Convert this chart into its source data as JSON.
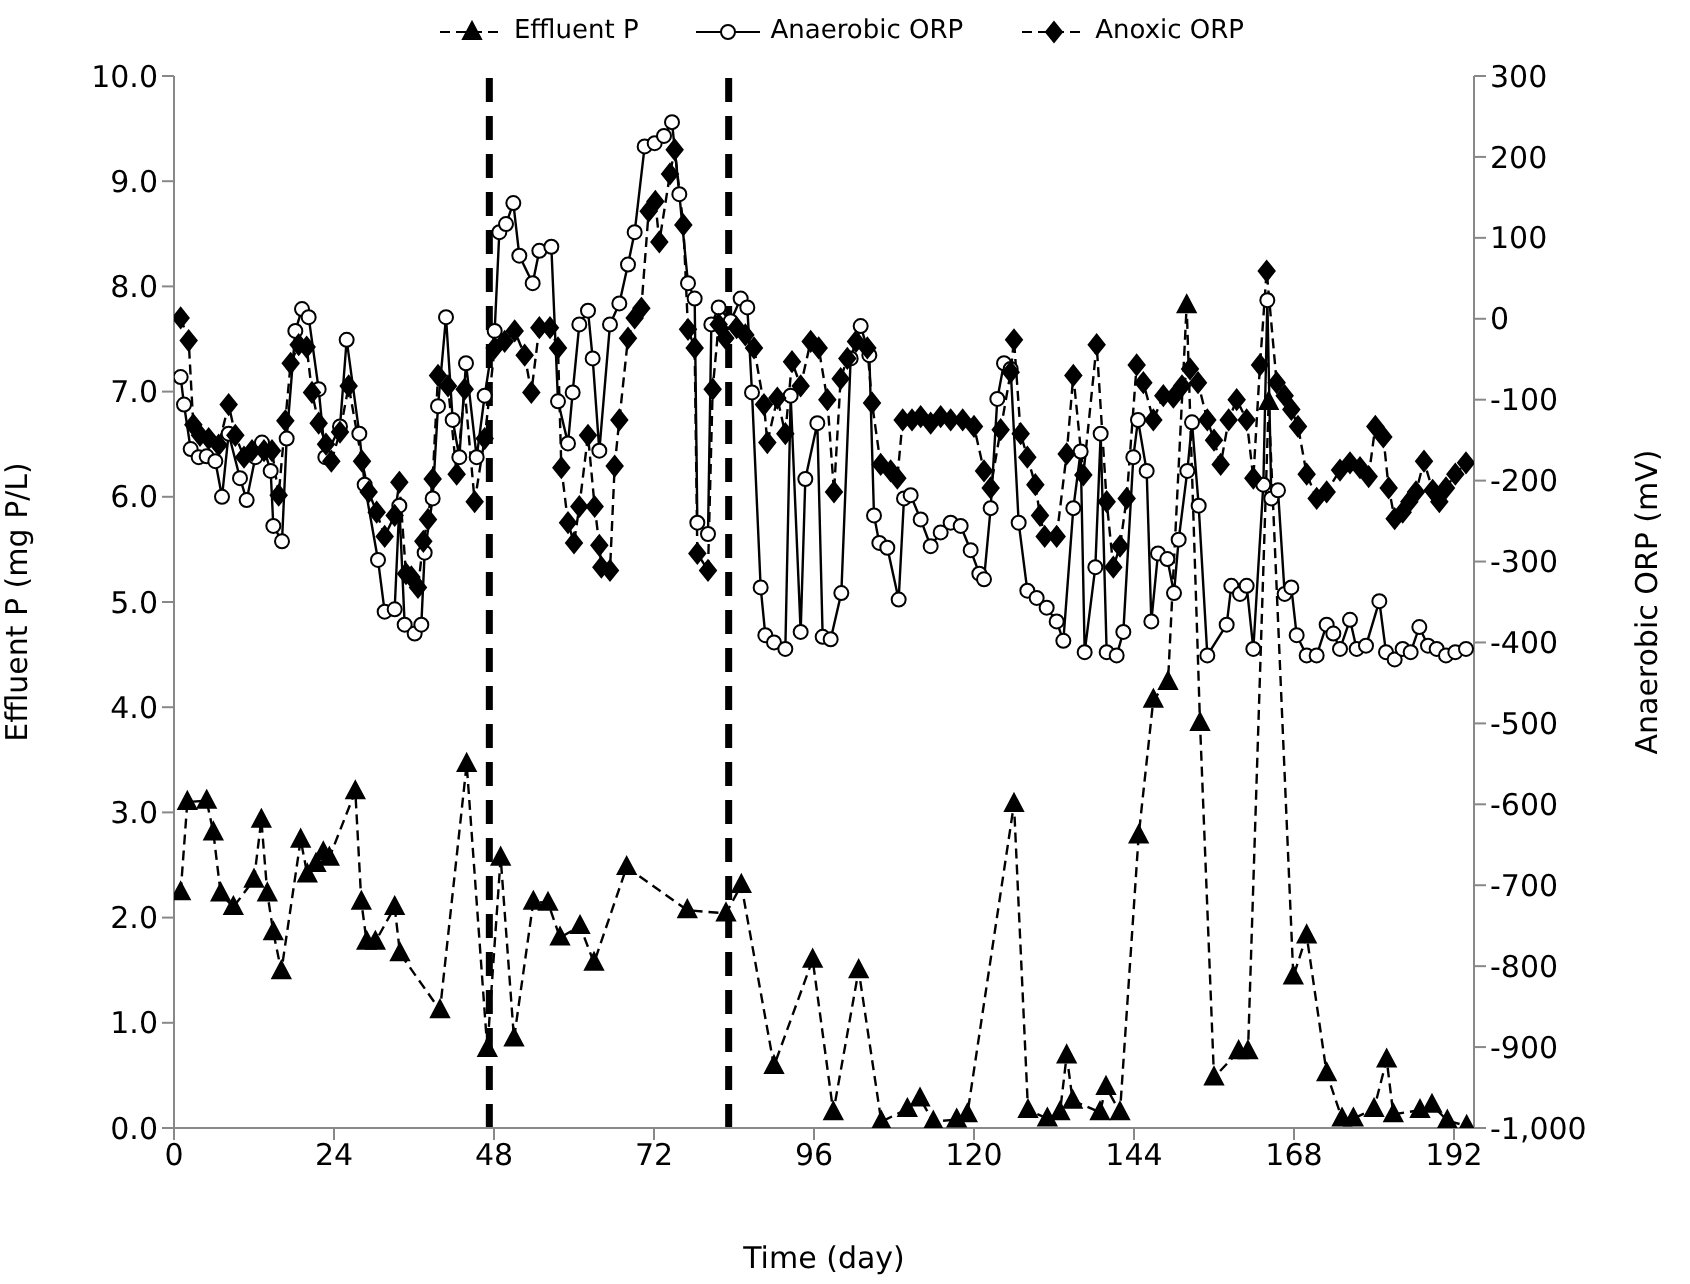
{
  "chart_data": {
    "type": "line",
    "xlabel": "Time (day)",
    "ylabel": "Effluent P (mg P/L)",
    "y2label": "Anaerobic ORP (mV)",
    "xlim": [
      0,
      195
    ],
    "xticks": [
      0,
      24,
      48,
      72,
      96,
      120,
      144,
      168,
      192
    ],
    "ylim": [
      0,
      10
    ],
    "yticks": [
      {
        "value": 0,
        "label": "0.0"
      },
      {
        "value": 1,
        "label": "1.0"
      },
      {
        "value": 2,
        "label": "2.0"
      },
      {
        "value": 3,
        "label": "3.0"
      },
      {
        "value": 4,
        "label": "4.0"
      },
      {
        "value": 5,
        "label": "5.0"
      },
      {
        "value": 6,
        "label": "6.0"
      },
      {
        "value": 7,
        "label": "7.0"
      },
      {
        "value": 8,
        "label": "8.0"
      },
      {
        "value": 9,
        "label": "9.0"
      },
      {
        "value": 10,
        "label": "10.0"
      }
    ],
    "y2lim": [
      -1000,
      300
    ],
    "y2ticks": [
      {
        "value": -1000,
        "label": "-1,000"
      },
      -900,
      -800,
      -700,
      -600,
      -500,
      -400,
      -300,
      -200,
      -100,
      0,
      100,
      200,
      300
    ],
    "legend": "top",
    "ref_lines": [
      {
        "axis": "x",
        "value": 47.3,
        "color": "#000000",
        "line_style": "dashed"
      },
      {
        "axis": "x",
        "value": 83.2,
        "color": "#000000",
        "line_style": "dashed"
      }
    ],
    "series": [
      {
        "name": "Effluent P",
        "color": "#000000",
        "marker": "triangle",
        "line_style": "dashed",
        "x": [
          1.0,
          2.0,
          4.9,
          5.9,
          7.0,
          8.9,
          12.0,
          13.1,
          14.0,
          14.9,
          16.1,
          19.0,
          20.0,
          21.3,
          22.4,
          23.3,
          27.2,
          28.1,
          28.9,
          30.2,
          33.1,
          33.9,
          39.9,
          43.9,
          47.0,
          49.0,
          51.0,
          53.9,
          56.1,
          57.9,
          60.9,
          63.0,
          67.9,
          77.0,
          82.8,
          85.1,
          90.0,
          95.8,
          98.9,
          102.7,
          106.1,
          110.0,
          111.9,
          113.9,
          117.4,
          119.0,
          126.0,
          128.1,
          131.0,
          132.9,
          133.9,
          134.8,
          138.9,
          139.8,
          141.9,
          144.7,
          146.9,
          149.1,
          151.9,
          153.9,
          156.0,
          159.7,
          161.1,
          164.2,
          167.9,
          169.9,
          172.9,
          175.2,
          176.9,
          180.0,
          181.9,
          182.9,
          186.9,
          188.7,
          191.0,
          193.9
        ],
        "values": [
          2.24,
          3.1,
          3.11,
          2.81,
          2.23,
          2.1,
          2.36,
          2.93,
          2.23,
          1.86,
          1.49,
          2.74,
          2.41,
          2.51,
          2.62,
          2.57,
          3.2,
          2.15,
          1.77,
          1.77,
          2.1,
          1.66,
          1.12,
          3.46,
          0.75,
          2.57,
          0.85,
          2.15,
          2.14,
          1.81,
          1.92,
          1.57,
          2.48,
          2.07,
          2.04,
          2.31,
          0.59,
          1.6,
          0.15,
          1.5,
          0.06,
          0.18,
          0.28,
          0.06,
          0.08,
          0.13,
          3.08,
          0.17,
          0.09,
          0.15,
          0.69,
          0.26,
          0.15,
          0.39,
          0.15,
          2.78,
          4.07,
          4.24,
          7.82,
          3.85,
          0.48,
          0.73,
          0.73,
          6.9,
          1.44,
          1.83,
          0.52,
          0.09,
          0.09,
          0.18,
          0.65,
          0.13,
          0.17,
          0.22,
          0.07,
          0.02
        ]
      },
      {
        "name": "Anaerobic ORP",
        "color": "#000000",
        "marker": "circle",
        "line_style": "solid",
        "axis": "y2",
        "x": [
          1.0,
          1.5,
          2.5,
          3.7,
          4.9,
          6.2,
          7.2,
          8.2,
          9.9,
          10.9,
          12.2,
          13.2,
          14.5,
          14.9,
          16.2,
          16.9,
          18.2,
          19.2,
          20.2,
          21.7,
          22.7,
          24.9,
          25.9,
          27.8,
          28.6,
          30.6,
          31.6,
          33.1,
          33.8,
          34.6,
          36.1,
          37.1,
          37.6,
          38.8,
          39.6,
          40.8,
          41.8,
          42.8,
          43.8,
          45.4,
          46.6,
          48.1,
          48.8,
          49.8,
          50.9,
          51.8,
          53.8,
          54.8,
          56.6,
          57.6,
          59.1,
          59.8,
          60.8,
          62.1,
          62.8,
          63.8,
          65.4,
          66.8,
          68.1,
          69.1,
          70.6,
          72.1,
          73.5,
          74.7,
          75.8,
          77.1,
          78.1,
          78.5,
          80.1,
          80.6,
          81.7,
          83.5,
          85.0,
          86.0,
          86.7,
          88.0,
          88.7,
          90.0,
          91.7,
          92.5,
          94.0,
          94.7,
          96.5,
          97.3,
          98.5,
          100.1,
          101.5,
          103.0,
          104.3,
          105.0,
          105.8,
          107.0,
          108.7,
          109.5,
          110.5,
          112.0,
          113.5,
          115.0,
          116.5,
          118.0,
          119.5,
          120.8,
          121.5,
          122.5,
          123.5,
          124.5,
          125.5,
          126.7,
          128.0,
          129.4,
          130.9,
          132.4,
          133.4,
          134.9,
          136.0,
          136.6,
          138.2,
          139.0,
          139.9,
          141.4,
          142.4,
          143.9,
          144.6,
          145.9,
          146.6,
          147.6,
          149.0,
          150.0,
          150.7,
          152.0,
          152.7,
          153.7,
          155.0,
          157.9,
          158.6,
          159.9,
          160.9,
          161.9,
          163.4,
          164.0,
          164.6,
          165.6,
          166.6,
          167.6,
          168.4,
          169.9,
          171.4,
          172.9,
          173.9,
          174.9,
          176.4,
          177.4,
          178.8,
          180.8,
          181.8,
          183.1,
          184.3,
          185.5,
          186.8,
          188.1,
          189.4,
          190.8,
          192.2,
          193.8
        ],
        "values": [
          -72,
          -106,
          -161,
          -171,
          -170,
          -176,
          -220,
          -142,
          -197,
          -224,
          -171,
          -153,
          -188,
          -256,
          -275,
          -148,
          -15,
          12,
          2,
          -87,
          -171,
          -133,
          -26,
          -142,
          -205,
          -298,
          -362,
          -359,
          -231,
          -378,
          -389,
          -378,
          -289,
          -222,
          -108,
          2,
          -125,
          -171,
          -55,
          -171,
          -95,
          -15,
          107,
          117,
          143,
          78,
          44,
          84,
          89,
          -102,
          -154,
          -91,
          -7,
          10,
          -49,
          -163,
          -7,
          19,
          67,
          107,
          213,
          217,
          226,
          243,
          154,
          44,
          25,
          -252,
          -266,
          -7,
          14,
          -3,
          25,
          14,
          -91,
          -332,
          -391,
          -400,
          -408,
          -95,
          -387,
          -198,
          -129,
          -393,
          -396,
          -339,
          -49,
          -9,
          -45,
          -243,
          -277,
          -283,
          -347,
          -222,
          -218,
          -248,
          -281,
          -264,
          -252,
          -256,
          -286,
          -315,
          -322,
          -234,
          -99,
          -55,
          -62,
          -252,
          -336,
          -345,
          -357,
          -374,
          -398,
          -234,
          -164,
          -412,
          -307,
          -142,
          -412,
          -416,
          -387,
          -171,
          -125,
          -188,
          -374,
          -290,
          -297,
          -339,
          -273,
          -188,
          -128,
          -231,
          -416,
          -378,
          -330,
          -340,
          -330,
          -408,
          -205,
          23,
          -222,
          -212,
          -340,
          -332,
          -391,
          -416,
          -416,
          -378,
          -389,
          -408,
          -372,
          -408,
          -404,
          -349,
          -412,
          -421,
          -408,
          -412,
          -381,
          -404,
          -408,
          -416,
          -412,
          -408
        ]
      },
      {
        "name": "Anoxic ORP",
        "color": "#000000",
        "marker": "diamond",
        "line_style": "dashed",
        "axis": "y2",
        "x": [
          1.0,
          2.2,
          2.9,
          3.9,
          5.2,
          6.7,
          8.2,
          9.2,
          10.5,
          11.7,
          13.5,
          14.7,
          15.7,
          16.7,
          17.5,
          18.7,
          19.9,
          20.7,
          21.7,
          22.8,
          23.6,
          24.9,
          26.2,
          28.2,
          29.2,
          30.4,
          31.6,
          33.1,
          33.8,
          34.8,
          35.6,
          36.6,
          37.4,
          38.1,
          38.8,
          39.6,
          41.1,
          42.4,
          43.6,
          45.1,
          46.6,
          48.1,
          49.6,
          51.1,
          52.6,
          53.6,
          54.8,
          56.4,
          57.6,
          58.1,
          59.1,
          60.0,
          60.8,
          62.1,
          63.1,
          63.8,
          64.1,
          65.4,
          66.1,
          66.8,
          68.1,
          69.1,
          70.1,
          71.2,
          72.2,
          72.8,
          74.4,
          75.1,
          76.4,
          77.1,
          78.1,
          78.5,
          80.1,
          80.8,
          81.7,
          82.7,
          84.4,
          85.7,
          87.0,
          88.5,
          89.0,
          90.5,
          91.7,
          92.7,
          94.0,
          95.5,
          96.7,
          98.0,
          99.0,
          100.0,
          101.0,
          102.3,
          104.0,
          104.7,
          106.0,
          107.5,
          108.5,
          109.3,
          110.7,
          112.0,
          113.5,
          115.0,
          116.5,
          118.3,
          120.0,
          121.5,
          122.5,
          124.0,
          125.5,
          126.0,
          127.0,
          128.0,
          129.2,
          129.9,
          130.6,
          132.4,
          133.9,
          134.9,
          136.4,
          138.4,
          139.9,
          140.9,
          141.9,
          142.9,
          144.4,
          145.4,
          146.9,
          148.4,
          149.9,
          151.2,
          152.4,
          153.6,
          155.0,
          156.0,
          157.0,
          158.2,
          159.4,
          160.9,
          161.9,
          162.9,
          163.9,
          165.4,
          166.6,
          167.6,
          168.6,
          169.9,
          171.4,
          172.9,
          174.9,
          176.4,
          177.9,
          179.2,
          180.2,
          181.4,
          182.2,
          183.1,
          184.3,
          185.3,
          186.3,
          187.5,
          188.8,
          189.8,
          190.8,
          192.2,
          193.8
        ],
        "values": [
          1,
          -27,
          -131,
          -144,
          -148,
          -156,
          -106,
          -144,
          -171,
          -163,
          -163,
          -163,
          -218,
          -126,
          -55,
          -32,
          -35,
          -91,
          -129,
          -155,
          -176,
          -140,
          -83,
          -176,
          -214,
          -239,
          -269,
          -243,
          -202,
          -315,
          -319,
          -332,
          -275,
          -248,
          -198,
          -70,
          -83,
          -192,
          -87,
          -226,
          -148,
          -36,
          -28,
          -15,
          -45,
          -91,
          -11,
          -11,
          -36,
          -184,
          -252,
          -277,
          -232,
          -144,
          -232,
          -280,
          -307,
          -311,
          -182,
          -125,
          -24,
          1,
          13,
          133,
          145,
          95,
          179,
          209,
          116,
          -13,
          -36,
          -290,
          -311,
          -87,
          -7,
          -24,
          -11,
          -20,
          -36,
          -106,
          -153,
          -98,
          -142,
          -53,
          -83,
          -28,
          -36,
          -100,
          -214,
          -74,
          -49,
          -28,
          -36,
          -104,
          -180,
          -188,
          -197,
          -125,
          -125,
          -121,
          -129,
          -121,
          -125,
          -125,
          -133,
          -188,
          -209,
          -137,
          -66,
          -26,
          -142,
          -171,
          -205,
          -243,
          -269,
          -269,
          -167,
          -70,
          -193,
          -32,
          -226,
          -307,
          -281,
          -222,
          -57,
          -79,
          -125,
          -95,
          -97,
          -83,
          -62,
          -79,
          -125,
          -150,
          -180,
          -125,
          -100,
          -125,
          -197,
          -57,
          59,
          -79,
          -95,
          -112,
          -133,
          -192,
          -222,
          -214,
          -187,
          -178,
          -184,
          -195,
          -133,
          -146,
          -209,
          -247,
          -239,
          -226,
          -214,
          -176,
          -212,
          -226,
          -209,
          -192,
          -178
        ]
      }
    ]
  }
}
